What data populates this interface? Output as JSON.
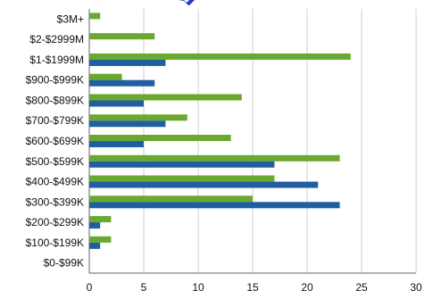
{
  "chart_data": {
    "type": "bar",
    "orientation": "horizontal",
    "categories": [
      "$3M+",
      "$2-$2999M",
      "$1-$1999M",
      "$900-$999K",
      "$800-$899K",
      "$700-$799K",
      "$600-$699K",
      "$500-$599K",
      "$400-$499K",
      "$300-$399K",
      "$200-$299K",
      "$100-$199K",
      "$0-$99K"
    ],
    "series": [
      {
        "color": "#6aa830",
        "values": [
          1,
          6,
          24,
          3,
          14,
          9,
          13,
          23,
          17,
          15,
          2,
          2,
          0
        ]
      },
      {
        "color": "#1f5f9f",
        "values": [
          0,
          0,
          7,
          6,
          5,
          7,
          5,
          17,
          21,
          23,
          1,
          1,
          0
        ]
      }
    ],
    "xlim": [
      0,
      30
    ],
    "xticks": [
      0,
      5,
      10,
      15,
      20,
      25,
      30
    ],
    "grid": true,
    "title_color": "#1f3fbf"
  }
}
